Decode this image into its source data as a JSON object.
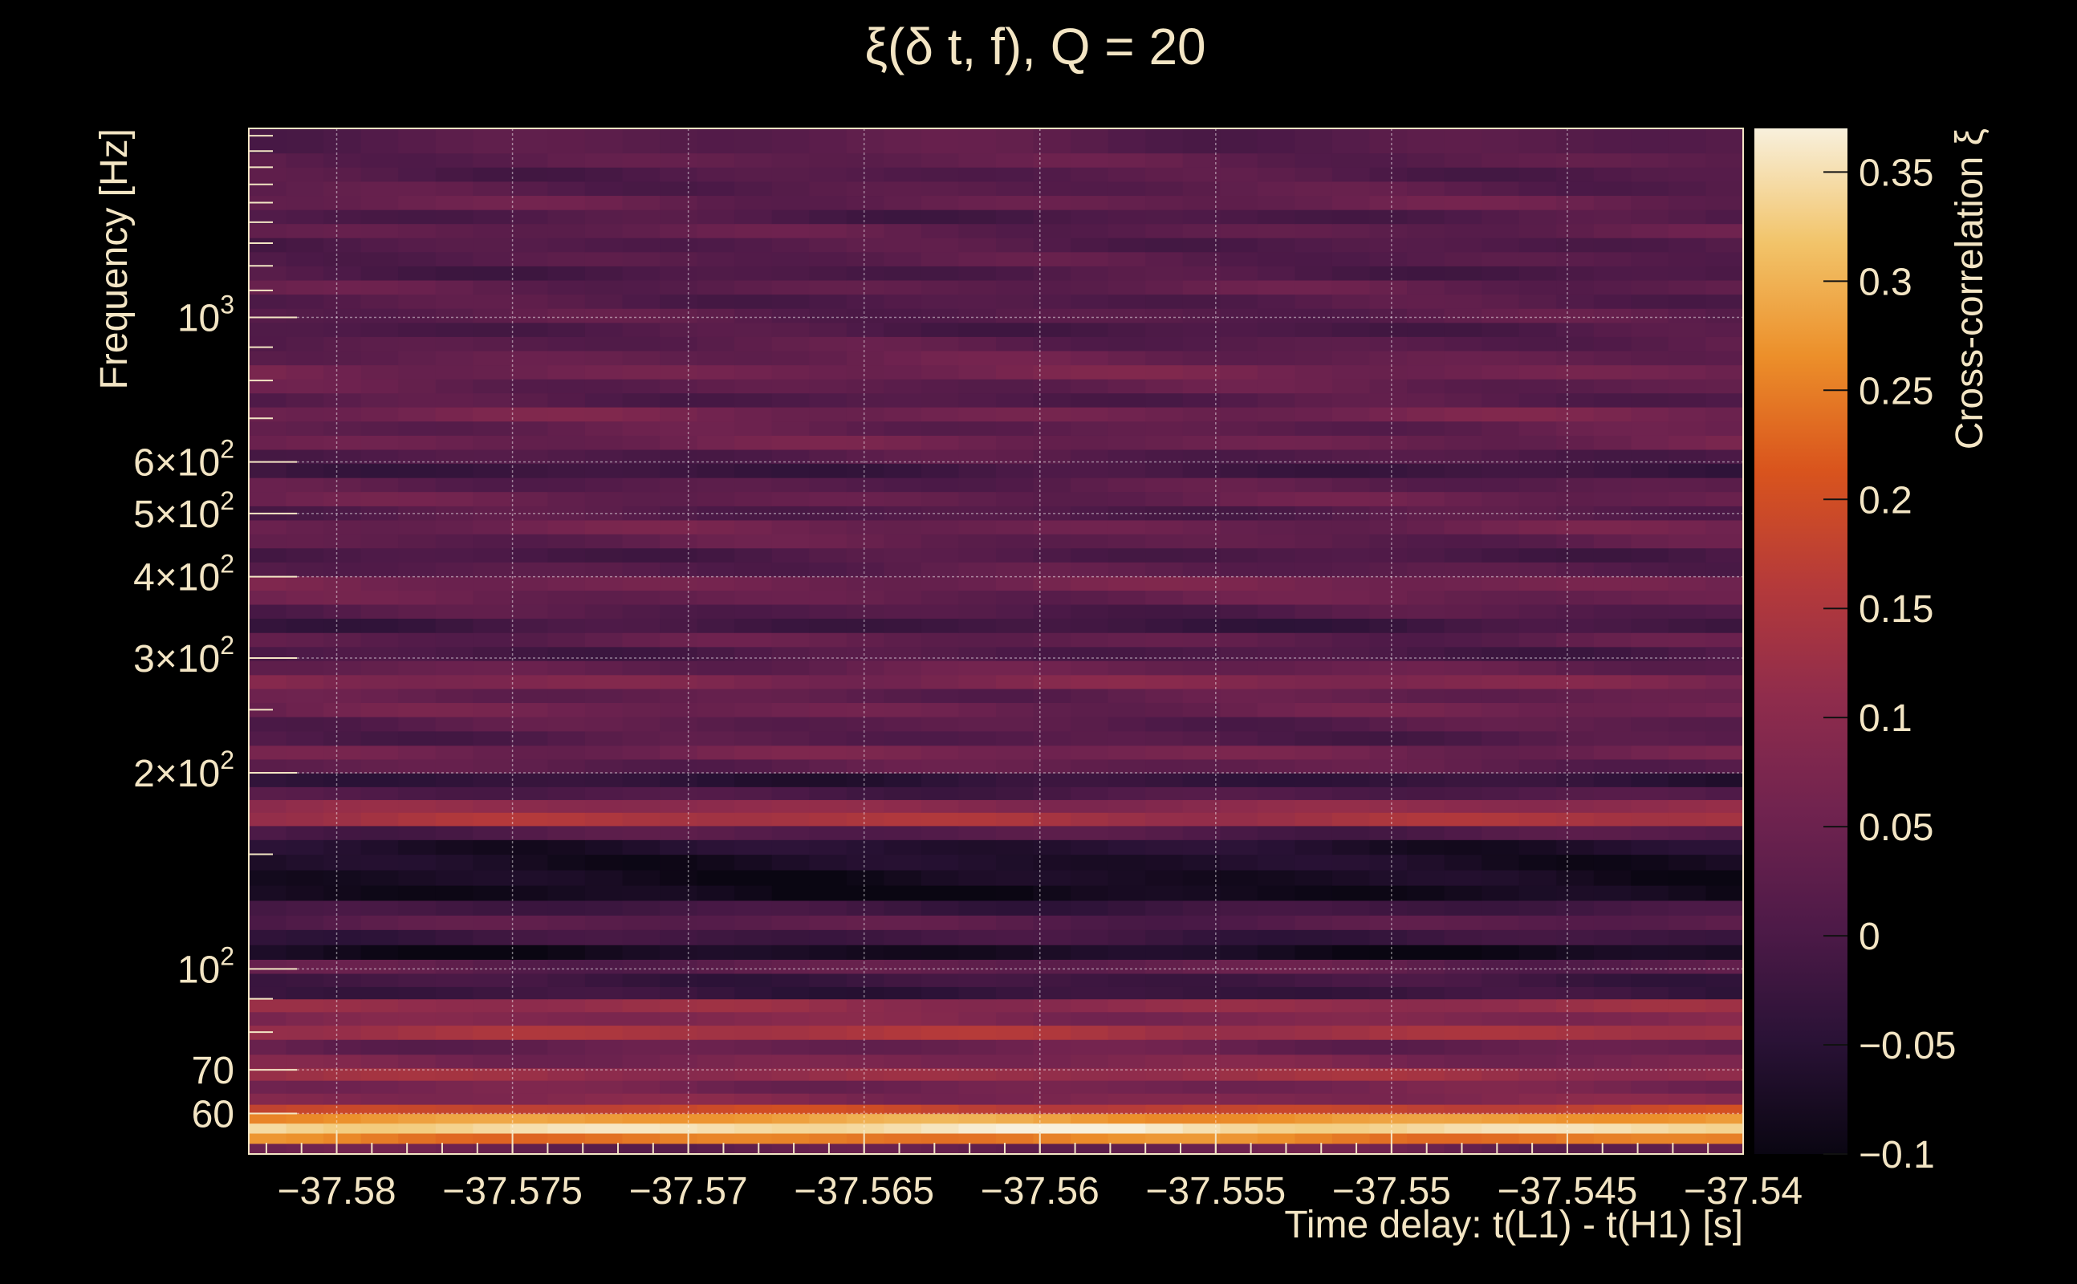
{
  "chart_data": {
    "type": "heatmap",
    "title": "ξ(δ t, f), Q = 20",
    "xlabel": "Time delay: t(L1) - t(H1) [s]",
    "ylabel": "Frequency [Hz]",
    "colorbar_label": "Cross-correlation ξ",
    "xlim": [
      -37.5825,
      -37.54
    ],
    "ylim": [
      52,
      1950
    ],
    "yscale": "log",
    "zlim": [
      -0.1,
      0.37
    ],
    "grid": true,
    "x_ticks": [
      {
        "value": -37.58,
        "label": "−37.58"
      },
      {
        "value": -37.575,
        "label": "−37.575"
      },
      {
        "value": -37.57,
        "label": "−37.57"
      },
      {
        "value": -37.565,
        "label": "−37.565"
      },
      {
        "value": -37.56,
        "label": "−37.56"
      },
      {
        "value": -37.555,
        "label": "−37.555"
      },
      {
        "value": -37.55,
        "label": "−37.55"
      },
      {
        "value": -37.545,
        "label": "−37.545"
      },
      {
        "value": -37.54,
        "label": "−37.54"
      }
    ],
    "y_ticks": [
      {
        "value": 60,
        "label": "60",
        "sup": ""
      },
      {
        "value": 70,
        "label": "70",
        "sup": ""
      },
      {
        "value": 100,
        "label": "10",
        "sup": "2"
      },
      {
        "value": 200,
        "label": "2×10",
        "sup": "2"
      },
      {
        "value": 300,
        "label": "3×10",
        "sup": "2"
      },
      {
        "value": 400,
        "label": "4×10",
        "sup": "2"
      },
      {
        "value": 500,
        "label": "5×10",
        "sup": "2"
      },
      {
        "value": 600,
        "label": "6×10",
        "sup": "2"
      },
      {
        "value": 1000,
        "label": "10",
        "sup": "3"
      }
    ],
    "colorbar_ticks": [
      {
        "value": 0.35,
        "label": "0.35"
      },
      {
        "value": 0.3,
        "label": "0.3"
      },
      {
        "value": 0.25,
        "label": "0.25"
      },
      {
        "value": 0.2,
        "label": "0.2"
      },
      {
        "value": 0.15,
        "label": "0.15"
      },
      {
        "value": 0.1,
        "label": "0.1"
      },
      {
        "value": 0.05,
        "label": "0.05"
      },
      {
        "value": 0,
        "label": "0"
      },
      {
        "value": -0.05,
        "label": "−0.05"
      },
      {
        "value": -0.1,
        "label": "−0.1"
      }
    ],
    "colormap": [
      "#000004",
      "#1b0c41",
      "#4a0c6b",
      "#781c6d",
      "#a52c60",
      "#cf4446",
      "#ed6925",
      "#fb9b06",
      "#f7d13d",
      "#fcffa4"
    ],
    "colormap_display": [
      "#0a0612",
      "#2a1236",
      "#4e1a48",
      "#70234f",
      "#8f2c4c",
      "#b53a3a",
      "#d9541d",
      "#ec8f2a",
      "#f2c46a",
      "#f8f0dc"
    ],
    "band_profile": [
      {
        "f": 53,
        "v": 0.04
      },
      {
        "f": 55,
        "v": 0.25
      },
      {
        "f": 57,
        "v": 0.35
      },
      {
        "f": 59,
        "v": 0.28
      },
      {
        "f": 61,
        "v": 0.18
      },
      {
        "f": 63,
        "v": 0.08
      },
      {
        "f": 66,
        "v": 0.06
      },
      {
        "f": 69,
        "v": 0.12
      },
      {
        "f": 72,
        "v": 0.07
      },
      {
        "f": 76,
        "v": 0.04
      },
      {
        "f": 80,
        "v": 0.14
      },
      {
        "f": 84,
        "v": 0.08
      },
      {
        "f": 88,
        "v": 0.11
      },
      {
        "f": 92,
        "v": -0.03
      },
      {
        "f": 96,
        "v": -0.02
      },
      {
        "f": 101,
        "v": 0.03
      },
      {
        "f": 106,
        "v": -0.08
      },
      {
        "f": 112,
        "v": -0.02
      },
      {
        "f": 118,
        "v": 0.02
      },
      {
        "f": 124,
        "v": -0.02
      },
      {
        "f": 131,
        "v": -0.09
      },
      {
        "f": 138,
        "v": -0.08
      },
      {
        "f": 146,
        "v": -0.07
      },
      {
        "f": 154,
        "v": -0.06
      },
      {
        "f": 162,
        "v": 0.01
      },
      {
        "f": 170,
        "v": 0.14
      },
      {
        "f": 178,
        "v": 0.1
      },
      {
        "f": 186,
        "v": 0.0
      },
      {
        "f": 195,
        "v": -0.04
      },
      {
        "f": 205,
        "v": 0.03
      },
      {
        "f": 215,
        "v": 0.06
      },
      {
        "f": 226,
        "v": 0.01
      },
      {
        "f": 238,
        "v": 0.02
      },
      {
        "f": 250,
        "v": 0.05
      },
      {
        "f": 263,
        "v": 0.03
      },
      {
        "f": 276,
        "v": 0.08
      },
      {
        "f": 290,
        "v": 0.04
      },
      {
        "f": 305,
        "v": 0.0
      },
      {
        "f": 320,
        "v": 0.03
      },
      {
        "f": 337,
        "v": -0.02
      },
      {
        "f": 354,
        "v": 0.01
      },
      {
        "f": 372,
        "v": 0.04
      },
      {
        "f": 391,
        "v": 0.06
      },
      {
        "f": 411,
        "v": 0.02
      },
      {
        "f": 432,
        "v": 0.0
      },
      {
        "f": 454,
        "v": 0.03
      },
      {
        "f": 477,
        "v": 0.05
      },
      {
        "f": 501,
        "v": 0.01
      },
      {
        "f": 527,
        "v": 0.04
      },
      {
        "f": 554,
        "v": 0.02
      },
      {
        "f": 582,
        "v": -0.02
      },
      {
        "f": 612,
        "v": 0.01
      },
      {
        "f": 643,
        "v": 0.05
      },
      {
        "f": 676,
        "v": 0.03
      },
      {
        "f": 711,
        "v": 0.06
      },
      {
        "f": 747,
        "v": 0.01
      },
      {
        "f": 785,
        "v": 0.03
      },
      {
        "f": 825,
        "v": 0.06
      },
      {
        "f": 867,
        "v": 0.04
      },
      {
        "f": 912,
        "v": 0.02
      },
      {
        "f": 958,
        "v": 0.0
      },
      {
        "f": 1007,
        "v": 0.02
      },
      {
        "f": 1059,
        "v": 0.01
      },
      {
        "f": 1113,
        "v": 0.03
      },
      {
        "f": 1170,
        "v": 0.0
      },
      {
        "f": 1230,
        "v": 0.02
      },
      {
        "f": 1293,
        "v": 0.01
      },
      {
        "f": 1359,
        "v": 0.03
      },
      {
        "f": 1428,
        "v": 0.0
      },
      {
        "f": 1501,
        "v": 0.04
      },
      {
        "f": 1578,
        "v": 0.02
      },
      {
        "f": 1659,
        "v": 0.01
      },
      {
        "f": 1744,
        "v": 0.03
      },
      {
        "f": 1833,
        "v": 0.02
      }
    ],
    "time_columns": 40
  }
}
